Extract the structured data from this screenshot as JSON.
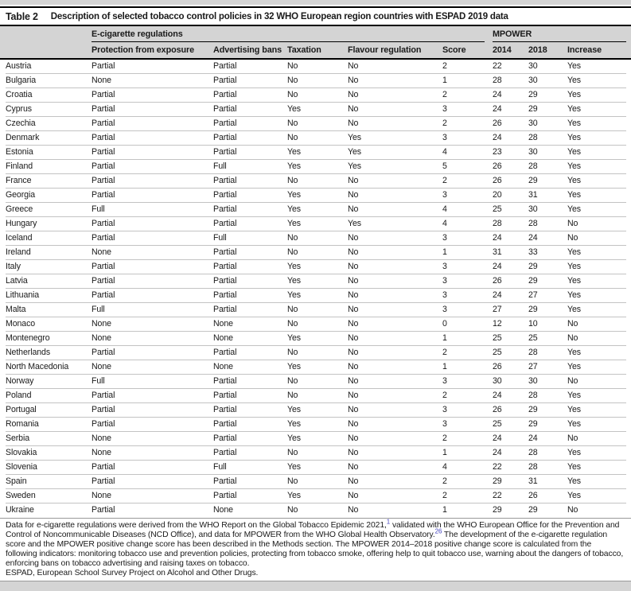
{
  "colors": {
    "header_bg": "#d4d4d4",
    "strip": "#d4d4d4",
    "link": "#4646c0"
  },
  "table": {
    "label": "Table 2",
    "title": "Description of selected tobacco control policies in 32 WHO European region countries with ESPAD 2019 data",
    "group_headers": {
      "ecig": "E-cigarette regulations",
      "mpower": "MPOWER"
    },
    "columns": {
      "protection": "Protection from exposure",
      "advertising": "Advertising bans",
      "taxation": "Taxation",
      "flavour": "Flavour regulation",
      "score": "Score",
      "y2014": "2014",
      "y2018": "2018",
      "increase": "Increase"
    },
    "rows": [
      {
        "country": "Austria",
        "protection": "Partial",
        "advertising": "Partial",
        "taxation": "No",
        "flavour": "No",
        "score": "2",
        "y2014": "22",
        "y2018": "30",
        "increase": "Yes"
      },
      {
        "country": "Bulgaria",
        "protection": "None",
        "advertising": "Partial",
        "taxation": "No",
        "flavour": "No",
        "score": "1",
        "y2014": "28",
        "y2018": "30",
        "increase": "Yes"
      },
      {
        "country": "Croatia",
        "protection": "Partial",
        "advertising": "Partial",
        "taxation": "No",
        "flavour": "No",
        "score": "2",
        "y2014": "24",
        "y2018": "29",
        "increase": "Yes"
      },
      {
        "country": "Cyprus",
        "protection": "Partial",
        "advertising": "Partial",
        "taxation": "Yes",
        "flavour": "No",
        "score": "3",
        "y2014": "24",
        "y2018": "29",
        "increase": "Yes"
      },
      {
        "country": "Czechia",
        "protection": "Partial",
        "advertising": "Partial",
        "taxation": "No",
        "flavour": "No",
        "score": "2",
        "y2014": "26",
        "y2018": "30",
        "increase": "Yes"
      },
      {
        "country": "Denmark",
        "protection": "Partial",
        "advertising": "Partial",
        "taxation": "No",
        "flavour": "Yes",
        "score": "3",
        "y2014": "24",
        "y2018": "28",
        "increase": "Yes"
      },
      {
        "country": "Estonia",
        "protection": "Partial",
        "advertising": "Partial",
        "taxation": "Yes",
        "flavour": "Yes",
        "score": "4",
        "y2014": "23",
        "y2018": "30",
        "increase": "Yes"
      },
      {
        "country": "Finland",
        "protection": "Partial",
        "advertising": "Full",
        "taxation": "Yes",
        "flavour": "Yes",
        "score": "5",
        "y2014": "26",
        "y2018": "28",
        "increase": "Yes"
      },
      {
        "country": "France",
        "protection": "Partial",
        "advertising": "Partial",
        "taxation": "No",
        "flavour": "No",
        "score": "2",
        "y2014": "26",
        "y2018": "29",
        "increase": "Yes"
      },
      {
        "country": "Georgia",
        "protection": "Partial",
        "advertising": "Partial",
        "taxation": "Yes",
        "flavour": "No",
        "score": "3",
        "y2014": "20",
        "y2018": "31",
        "increase": "Yes"
      },
      {
        "country": "Greece",
        "protection": "Full",
        "advertising": "Partial",
        "taxation": "Yes",
        "flavour": "No",
        "score": "4",
        "y2014": "25",
        "y2018": "30",
        "increase": "Yes"
      },
      {
        "country": "Hungary",
        "protection": "Partial",
        "advertising": "Partial",
        "taxation": "Yes",
        "flavour": "Yes",
        "score": "4",
        "y2014": "28",
        "y2018": "28",
        "increase": "No"
      },
      {
        "country": "Iceland",
        "protection": "Partial",
        "advertising": "Full",
        "taxation": "No",
        "flavour": "No",
        "score": "3",
        "y2014": "24",
        "y2018": "24",
        "increase": "No"
      },
      {
        "country": "Ireland",
        "protection": "None",
        "advertising": "Partial",
        "taxation": "No",
        "flavour": "No",
        "score": "1",
        "y2014": "31",
        "y2018": "33",
        "increase": "Yes"
      },
      {
        "country": "Italy",
        "protection": "Partial",
        "advertising": "Partial",
        "taxation": "Yes",
        "flavour": "No",
        "score": "3",
        "y2014": "24",
        "y2018": "29",
        "increase": "Yes"
      },
      {
        "country": "Latvia",
        "protection": "Partial",
        "advertising": "Partial",
        "taxation": "Yes",
        "flavour": "No",
        "score": "3",
        "y2014": "26",
        "y2018": "29",
        "increase": "Yes"
      },
      {
        "country": "Lithuania",
        "protection": "Partial",
        "advertising": "Partial",
        "taxation": "Yes",
        "flavour": "No",
        "score": "3",
        "y2014": "24",
        "y2018": "27",
        "increase": "Yes"
      },
      {
        "country": "Malta",
        "protection": "Full",
        "advertising": "Partial",
        "taxation": "No",
        "flavour": "No",
        "score": "3",
        "y2014": "27",
        "y2018": "29",
        "increase": "Yes"
      },
      {
        "country": "Monaco",
        "protection": "None",
        "advertising": "None",
        "taxation": "No",
        "flavour": "No",
        "score": "0",
        "y2014": "12",
        "y2018": "10",
        "increase": "No"
      },
      {
        "country": "Montenegro",
        "protection": "None",
        "advertising": "None",
        "taxation": "Yes",
        "flavour": "No",
        "score": "1",
        "y2014": "25",
        "y2018": "25",
        "increase": "No"
      },
      {
        "country": "Netherlands",
        "protection": "Partial",
        "advertising": "Partial",
        "taxation": "No",
        "flavour": "No",
        "score": "2",
        "y2014": "25",
        "y2018": "28",
        "increase": "Yes"
      },
      {
        "country": "North Macedonia",
        "protection": "None",
        "advertising": "None",
        "taxation": "Yes",
        "flavour": "No",
        "score": "1",
        "y2014": "26",
        "y2018": "27",
        "increase": "Yes"
      },
      {
        "country": "Norway",
        "protection": "Full",
        "advertising": "Partial",
        "taxation": "No",
        "flavour": "No",
        "score": "3",
        "y2014": "30",
        "y2018": "30",
        "increase": "No"
      },
      {
        "country": "Poland",
        "protection": "Partial",
        "advertising": "Partial",
        "taxation": "No",
        "flavour": "No",
        "score": "2",
        "y2014": "24",
        "y2018": "28",
        "increase": "Yes"
      },
      {
        "country": "Portugal",
        "protection": "Partial",
        "advertising": "Partial",
        "taxation": "Yes",
        "flavour": "No",
        "score": "3",
        "y2014": "26",
        "y2018": "29",
        "increase": "Yes"
      },
      {
        "country": "Romania",
        "protection": "Partial",
        "advertising": "Partial",
        "taxation": "Yes",
        "flavour": "No",
        "score": "3",
        "y2014": "25",
        "y2018": "29",
        "increase": "Yes"
      },
      {
        "country": "Serbia",
        "protection": "None",
        "advertising": "Partial",
        "taxation": "Yes",
        "flavour": "No",
        "score": "2",
        "y2014": "24",
        "y2018": "24",
        "increase": "No"
      },
      {
        "country": "Slovakia",
        "protection": "None",
        "advertising": "Partial",
        "taxation": "No",
        "flavour": "No",
        "score": "1",
        "y2014": "24",
        "y2018": "28",
        "increase": "Yes"
      },
      {
        "country": "Slovenia",
        "protection": "Partial",
        "advertising": "Full",
        "taxation": "Yes",
        "flavour": "No",
        "score": "4",
        "y2014": "22",
        "y2018": "28",
        "increase": "Yes"
      },
      {
        "country": "Spain",
        "protection": "Partial",
        "advertising": "Partial",
        "taxation": "No",
        "flavour": "No",
        "score": "2",
        "y2014": "29",
        "y2018": "31",
        "increase": "Yes"
      },
      {
        "country": "Sweden",
        "protection": "None",
        "advertising": "Partial",
        "taxation": "Yes",
        "flavour": "No",
        "score": "2",
        "y2014": "22",
        "y2018": "26",
        "increase": "Yes"
      },
      {
        "country": "Ukraine",
        "protection": "Partial",
        "advertising": "None",
        "taxation": "No",
        "flavour": "No",
        "score": "1",
        "y2014": "29",
        "y2018": "29",
        "increase": "No"
      }
    ]
  },
  "footnote": {
    "part1": "Data for e-cigarette regulations were derived from the WHO Report on the Global Tobacco Epidemic 2021,",
    "sup1": "1",
    "part2": " validated with the WHO European Office for the Prevention and Control of Noncommunicable Diseases (NCD Office), and data for MPOWER from the WHO Global Health Observatory.",
    "sup2": "26",
    "part3": " The development of the e-cigarette regulation score and the MPOWER positive change score has been described in the Methods section. The MPOWER 2014–2018 positive change score is calculated from the following indicators: monitoring tobacco use and prevention policies, protecting from tobacco smoke, offering help to quit tobacco use, warning about the dangers of tobacco, enforcing bans on tobacco advertising and raising taxes on tobacco.",
    "espad": "ESPAD, European School Survey Project on Alcohol and Other Drugs."
  }
}
